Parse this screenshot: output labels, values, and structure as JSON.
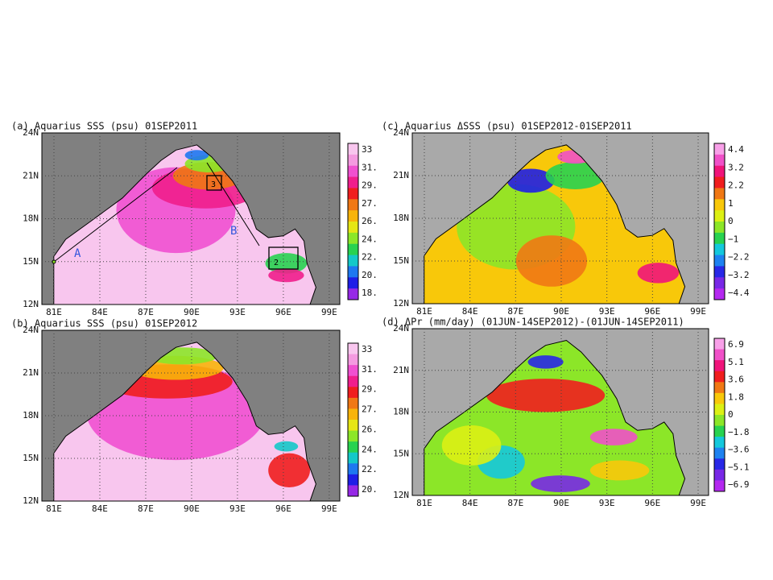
{
  "panels": [
    {
      "title": "(a) Aquarius SSS (psu)  01SEP2011",
      "yticks": [
        "24N",
        "21N",
        "18N",
        "15N",
        "12N"
      ],
      "xticks": [
        "81E",
        "84E",
        "87E",
        "90E",
        "93E",
        "96E",
        "99E"
      ],
      "colorbar": [
        "33",
        "31.",
        "29.",
        "27.",
        "26.",
        "24.",
        "22.",
        "20.",
        "18."
      ],
      "annotations": [
        "A",
        "B",
        "2",
        "3"
      ]
    },
    {
      "title": "(b) Aquarius SSS (psu)  01SEP2012",
      "yticks": [
        "24N",
        "21N",
        "18N",
        "15N",
        "12N"
      ],
      "xticks": [
        "81E",
        "84E",
        "87E",
        "90E",
        "93E",
        "96E",
        "99E"
      ],
      "colorbar": [
        "33",
        "31.",
        "29.",
        "27.",
        "26.",
        "24.",
        "22.",
        "20."
      ]
    },
    {
      "title": "(c) Aquarius ΔSSS (psu)  01SEP2012-01SEP2011",
      "yticks": [
        "24N",
        "21N",
        "18N",
        "15N",
        "12N"
      ],
      "xticks": [
        "81E",
        "84E",
        "87E",
        "90E",
        "93E",
        "96E",
        "99E"
      ],
      "colorbar": [
        "4.4",
        "3.2",
        "2.2",
        "1",
        "0",
        "−1",
        "−2.2",
        "−3.2",
        "−4.4"
      ]
    },
    {
      "title": "(d) ΔPr (mm/day)  (01JUN-14SEP2012)-(01JUN-14SEP2011)",
      "yticks": [
        "24N",
        "21N",
        "18N",
        "15N",
        "12N"
      ],
      "xticks": [
        "81E",
        "84E",
        "87E",
        "90E",
        "93E",
        "96E",
        "99E"
      ],
      "colorbar": [
        "6.9",
        "5.1",
        "3.6",
        "1.8",
        "0",
        "−1.8",
        "−3.6",
        "−5.1",
        "−6.9"
      ]
    }
  ]
}
